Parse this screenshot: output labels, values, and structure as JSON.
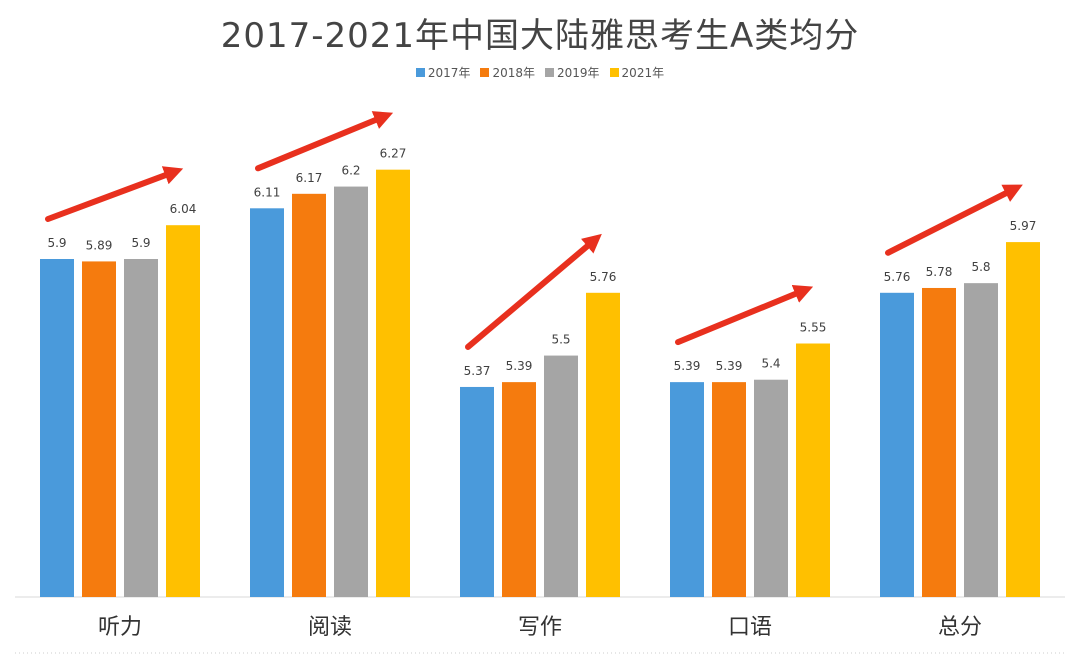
{
  "chart_data": {
    "type": "bar",
    "title": "2017-2021年中国大陆雅思考生A类均分",
    "categories": [
      "听力",
      "阅读",
      "写作",
      "口语",
      "总分"
    ],
    "series": [
      {
        "name": "2017年",
        "color": "#4A9ADB",
        "values": [
          5.9,
          6.11,
          5.37,
          5.39,
          5.76
        ]
      },
      {
        "name": "2018年",
        "color": "#F57B0E",
        "values": [
          5.89,
          6.17,
          5.39,
          5.39,
          5.78
        ]
      },
      {
        "name": "2019年",
        "color": "#A5A5A5",
        "values": [
          5.9,
          6.2,
          5.5,
          5.4,
          5.8
        ]
      },
      {
        "name": "2021年",
        "color": "#FFC000",
        "values": [
          6.04,
          6.27,
          5.76,
          5.55,
          5.97
        ]
      }
    ],
    "ylim": [
      4.5,
      6.5
    ],
    "grid": false,
    "legend": "top-center",
    "xlabel": "",
    "ylabel": "",
    "annotations": "red upward trend arrow above each category",
    "arrow_color": "#E8301E"
  }
}
